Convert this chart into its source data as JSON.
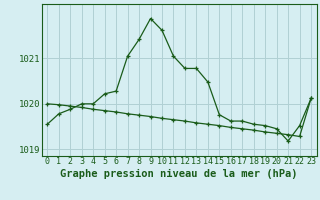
{
  "title": "Graphe pression niveau de la mer (hPa)",
  "background_color": "#d6eef2",
  "grid_color": "#b0d0d4",
  "line_color": "#1a5c1a",
  "hours": [
    0,
    1,
    2,
    3,
    4,
    5,
    6,
    7,
    8,
    9,
    10,
    11,
    12,
    13,
    14,
    15,
    16,
    17,
    18,
    19,
    20,
    21,
    22,
    23
  ],
  "series1": [
    1019.55,
    1019.78,
    1019.88,
    1020.0,
    1020.0,
    1020.22,
    1020.28,
    1021.05,
    1021.42,
    1021.88,
    1021.62,
    1021.05,
    1020.78,
    1020.78,
    1020.48,
    1019.76,
    1019.62,
    1019.62,
    1019.55,
    1019.52,
    1019.45,
    1019.18,
    1019.52,
    1020.12
  ],
  "series2": [
    1020.0,
    1019.98,
    1019.95,
    1019.92,
    1019.88,
    1019.85,
    1019.82,
    1019.78,
    1019.75,
    1019.72,
    1019.68,
    1019.65,
    1019.62,
    1019.58,
    1019.55,
    1019.52,
    1019.48,
    1019.45,
    1019.42,
    1019.38,
    1019.35,
    1019.32,
    1019.28,
    1020.12
  ],
  "ylim_min": 1018.85,
  "ylim_max": 1022.2,
  "yticks": [
    1019,
    1020,
    1021
  ],
  "x_labels": [
    "0",
    "1",
    "2",
    "3",
    "4",
    "5",
    "6",
    "7",
    "8",
    "9",
    "10",
    "11",
    "12",
    "13",
    "14",
    "15",
    "16",
    "17",
    "18",
    "19",
    "20",
    "21",
    "22",
    "23"
  ],
  "title_fontsize": 7.5,
  "tick_fontsize": 6.5
}
